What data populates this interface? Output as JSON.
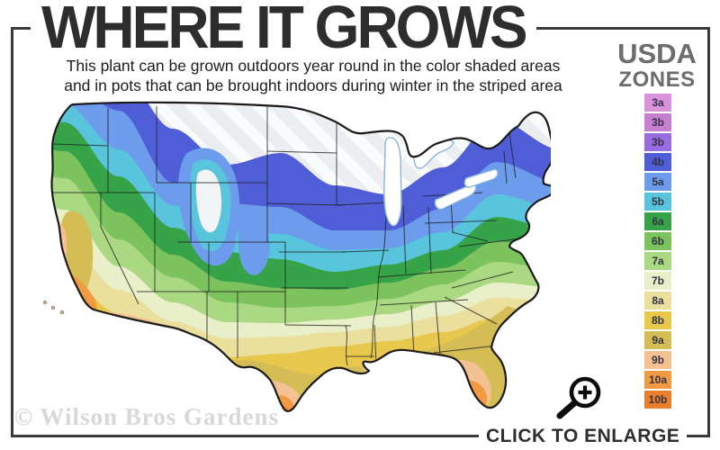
{
  "title": "WHERE IT GROWS",
  "subtitle": {
    "line1": "This plant can be grown outdoors year round in the color shaded areas",
    "line2": "and in pots that can be brought indoors during winter in the striped area"
  },
  "legend": {
    "title_line1": "USDA",
    "title_line2": "ZONES",
    "zones": [
      {
        "label": "3a",
        "color": "#d993dc"
      },
      {
        "label": "3b",
        "color": "#c77fd0"
      },
      {
        "label": "3b",
        "color": "#9a6ce2"
      },
      {
        "label": "4b",
        "color": "#4f5ed7"
      },
      {
        "label": "5a",
        "color": "#6d9cec"
      },
      {
        "label": "5b",
        "color": "#58c5dc"
      },
      {
        "label": "6a",
        "color": "#36a349"
      },
      {
        "label": "6b",
        "color": "#7cc35e"
      },
      {
        "label": "7a",
        "color": "#abd883"
      },
      {
        "label": "7b",
        "color": "#e9efc8"
      },
      {
        "label": "8a",
        "color": "#ebdf9e"
      },
      {
        "label": "8b",
        "color": "#e8c74d"
      },
      {
        "label": "9a",
        "color": "#d4bd55"
      },
      {
        "label": "9b",
        "color": "#f4c192"
      },
      {
        "label": "10a",
        "color": "#f29a41"
      },
      {
        "label": "10b",
        "color": "#e97e2d"
      }
    ]
  },
  "map": {
    "type": "usda-plant-hardiness-zone-map",
    "region": "continental-united-states",
    "striped_area_meaning": "striped area"
  },
  "watermark": "© Wilson Bros Gardens",
  "enlarge": {
    "label": "CLICK TO ENLARGE",
    "icon": "magnifier-plus-icon"
  }
}
